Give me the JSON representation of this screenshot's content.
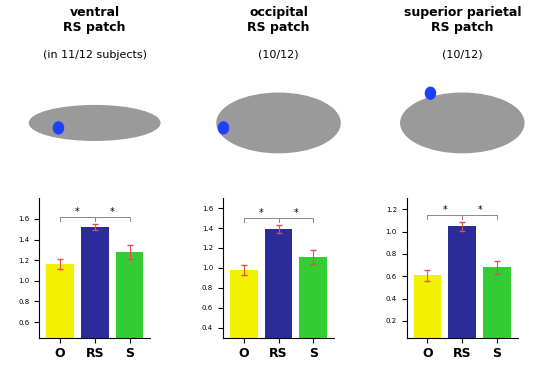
{
  "chart_data": [
    {
      "type": "bar",
      "title": "ventral\nRS patch",
      "subtitle": "(in 11/12 subjects)",
      "categories": [
        "O",
        "RS",
        "S"
      ],
      "values": [
        1.16,
        1.52,
        1.28
      ],
      "errors": [
        0.05,
        0.03,
        0.07
      ],
      "colors": [
        "#f2f200",
        "#2b2b99",
        "#33cc33"
      ],
      "ylim": [
        0.45,
        1.8
      ],
      "yticks": [
        0.6,
        0.8,
        {
          "value": 1,
          "label": "1.0"
        },
        1.2,
        1.4,
        1.6
      ],
      "comparisons": [
        {
          "from": "O",
          "to": "RS",
          "label": "*"
        },
        {
          "from": "RS",
          "to": "S",
          "label": "*"
        }
      ]
    },
    {
      "type": "bar",
      "title": "occipital\nRS patch",
      "subtitle": "(10/12)",
      "categories": [
        "O",
        "RS",
        "S"
      ],
      "values": [
        0.98,
        1.39,
        1.11
      ],
      "errors": [
        0.05,
        0.04,
        0.07
      ],
      "colors": [
        "#f2f200",
        "#2b2b99",
        "#33cc33"
      ],
      "ylim": [
        0.3,
        1.7
      ],
      "yticks": [
        0.4,
        0.6,
        0.8,
        {
          "value": 1,
          "label": "1.0"
        },
        1.2,
        1.4,
        1.6
      ],
      "comparisons": [
        {
          "from": "O",
          "to": "RS",
          "label": "*"
        },
        {
          "from": "RS",
          "to": "S",
          "label": "*"
        }
      ]
    },
    {
      "type": "bar",
      "title": "superior parietal\nRS patch",
      "subtitle": "(10/12)",
      "categories": [
        "O",
        "RS",
        "S"
      ],
      "values": [
        0.61,
        1.05,
        0.68
      ],
      "errors": [
        0.05,
        0.04,
        0.06
      ],
      "colors": [
        "#f2f200",
        "#2b2b99",
        "#33cc33"
      ],
      "ylim": [
        0.05,
        1.3
      ],
      "yticks": [
        0.2,
        0.4,
        0.6,
        0.8,
        {
          "value": 1,
          "label": "1.0"
        },
        1.2
      ],
      "comparisons": [
        {
          "from": "O",
          "to": "RS",
          "label": "*"
        },
        {
          "from": "RS",
          "to": "S",
          "label": "*"
        }
      ]
    }
  ]
}
